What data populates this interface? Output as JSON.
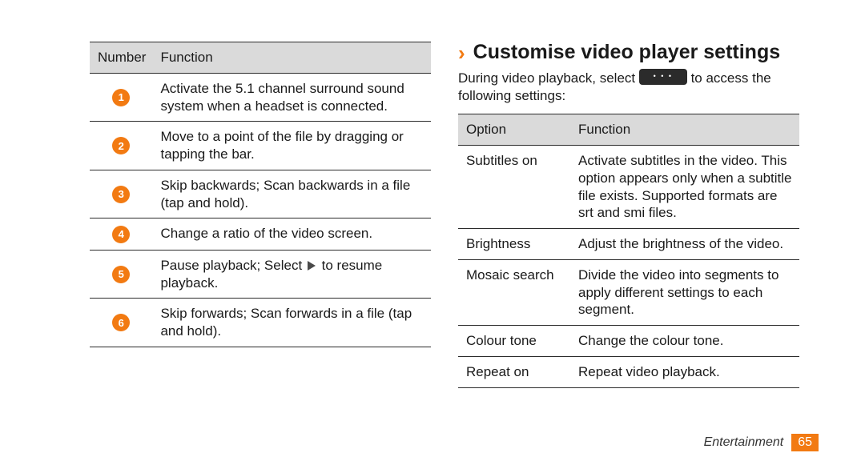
{
  "left_table": {
    "headers": {
      "num": "Number",
      "func": "Function"
    },
    "rows": [
      {
        "n": "1",
        "text": "Activate the 5.1 channel surround sound system when a headset is connected."
      },
      {
        "n": "2",
        "text": "Move to a point of the file by dragging or tapping the bar."
      },
      {
        "n": "3",
        "text": "Skip backwards; Scan backwards in a file (tap and hold)."
      },
      {
        "n": "4",
        "text": "Change a ratio of the video screen."
      },
      {
        "n": "5",
        "pre": "Pause playback; Select ",
        "post": " to resume playback."
      },
      {
        "n": "6",
        "text": "Skip forwards; Scan forwards in a file (tap and hold)."
      }
    ]
  },
  "right": {
    "heading": "Customise video player settings",
    "intro_pre": "During video playback, select ",
    "intro_post": " to access the following settings:",
    "table": {
      "headers": {
        "opt": "Option",
        "func": "Function"
      },
      "rows": [
        {
          "opt": "Subtitles on",
          "func": "Activate subtitles in the video. This option appears only when a subtitle file exists. Supported formats are srt and smi files."
        },
        {
          "opt": "Brightness",
          "func": "Adjust the brightness of the video."
        },
        {
          "opt": "Mosaic search",
          "func": "Divide the video into segments to apply different settings to each segment."
        },
        {
          "opt": "Colour tone",
          "func": "Change the colour tone."
        },
        {
          "opt": "Repeat on",
          "func": "Repeat video playback."
        }
      ]
    }
  },
  "footer": {
    "section": "Entertainment",
    "page": "65"
  }
}
